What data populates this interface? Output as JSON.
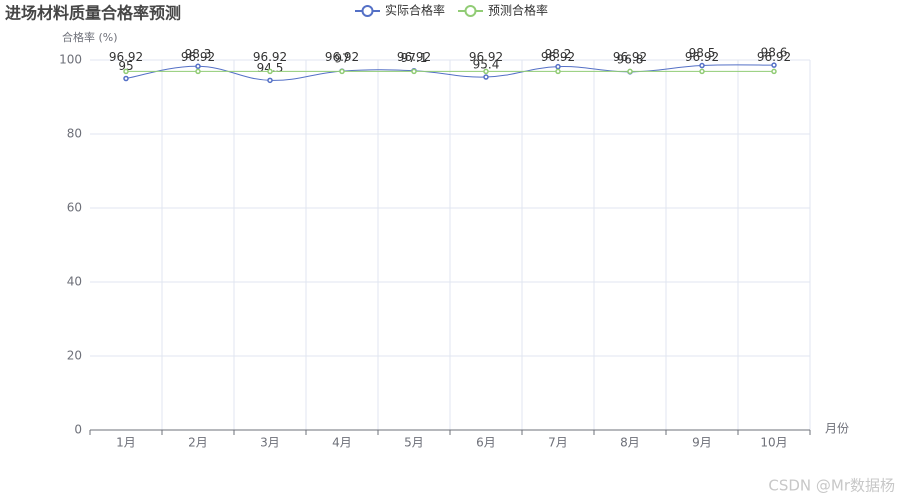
{
  "chart_data": {
    "type": "line",
    "title": "进场材料质量合格率预测",
    "y_axis_label": "合格率 (%)",
    "x_axis_label": "月份",
    "categories": [
      "1月",
      "2月",
      "3月",
      "4月",
      "5月",
      "6月",
      "7月",
      "8月",
      "9月",
      "10月"
    ],
    "series": [
      {
        "name": "实际合格率",
        "color": "#5470c6",
        "smooth": true,
        "values": [
          95,
          98.3,
          94.5,
          97,
          97.1,
          95.4,
          98.2,
          96.8,
          98.5,
          98.6
        ]
      },
      {
        "name": "预测合格率",
        "color": "#91cc75",
        "smooth": false,
        "values": [
          96.92,
          96.92,
          96.92,
          96.92,
          96.92,
          96.92,
          96.92,
          96.92,
          96.92,
          96.92
        ]
      }
    ],
    "ylim": [
      0,
      100
    ],
    "yticks": [
      0,
      20,
      40,
      60,
      80,
      100
    ],
    "grid": true,
    "watermark": "CSDN @Mr数据杨"
  }
}
